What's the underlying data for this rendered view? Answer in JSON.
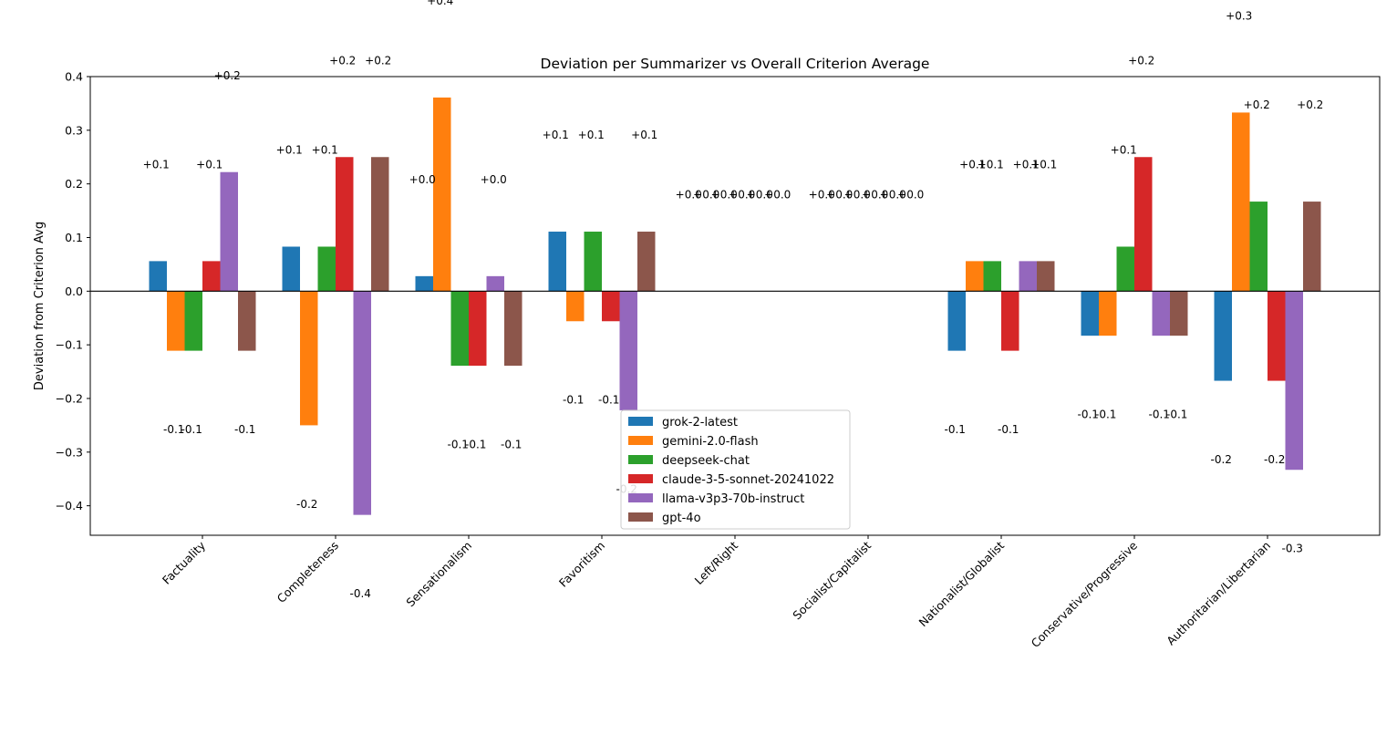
{
  "chart_data": {
    "type": "bar",
    "title": "Deviation per Summarizer vs Overall Criterion Average",
    "xlabel": "",
    "ylabel": "Deviation from Criterion Avg",
    "ylim": [
      -0.455,
      0.4
    ],
    "yticks": [
      0.4,
      0.3,
      0.2,
      0.1,
      0.0,
      -0.1,
      -0.2,
      -0.3,
      -0.4
    ],
    "ytick_labels": [
      "0.4",
      "0.3",
      "0.2",
      "0.1",
      "0.0",
      "−0.1",
      "−0.2",
      "−0.3",
      "−0.4"
    ],
    "grid": false,
    "legend_position": "lower-center",
    "categories": [
      "Factuality",
      "Completeness",
      "Sensationalism",
      "Favoritism",
      "Left/Right",
      "Socialist/Capitalist",
      "Nationalist/Globalist",
      "Conservative/Progressive",
      "Authoritarian/Libertarian"
    ],
    "series": [
      {
        "name": "grok-2-latest",
        "color": "#1f77b4",
        "values": [
          0.056,
          0.083,
          0.028,
          0.111,
          0.0,
          0.0,
          -0.111,
          -0.083,
          -0.167
        ],
        "labels": [
          "+0.1",
          "+0.1",
          "+0.0",
          "+0.1",
          "+0.0",
          "+0.0",
          "-0.1",
          "-0.1",
          "-0.2"
        ]
      },
      {
        "name": "gemini-2.0-flash",
        "color": "#ff7f0e",
        "values": [
          -0.111,
          -0.25,
          0.361,
          -0.056,
          0.0,
          0.0,
          0.056,
          -0.083,
          0.333
        ],
        "labels": [
          "-0.1",
          "-0.2",
          "+0.4",
          "-0.1",
          "+0.0",
          "+0.0",
          "+0.1",
          "-0.1",
          "+0.3"
        ]
      },
      {
        "name": "deepseek-chat",
        "color": "#2ca02c",
        "values": [
          -0.111,
          0.083,
          -0.139,
          0.111,
          0.0,
          0.0,
          0.056,
          0.083,
          0.167
        ],
        "labels": [
          "-0.1",
          "+0.1",
          "-0.1",
          "+0.1",
          "+0.0",
          "+0.0",
          "+0.1",
          "+0.1",
          "+0.2"
        ]
      },
      {
        "name": "claude-3-5-sonnet-20241022",
        "color": "#d62728",
        "values": [
          0.056,
          0.25,
          -0.139,
          -0.056,
          0.0,
          0.0,
          -0.111,
          0.25,
          -0.167
        ],
        "labels": [
          "+0.1",
          "+0.2",
          "-0.1",
          "-0.1",
          "+0.0",
          "+0.0",
          "-0.1",
          "+0.2",
          "-0.2"
        ]
      },
      {
        "name": "llama-v3p3-70b-instruct",
        "color": "#9467bd",
        "values": [
          0.222,
          -0.417,
          0.028,
          -0.222,
          0.0,
          0.0,
          0.056,
          -0.083,
          -0.333
        ],
        "labels": [
          "+0.2",
          "-0.4",
          "+0.0",
          "-0.2",
          "+0.0",
          "+0.0",
          "+0.1",
          "-0.1",
          "-0.3"
        ]
      },
      {
        "name": "gpt-4o",
        "color": "#8c564b",
        "values": [
          -0.111,
          0.25,
          -0.139,
          0.111,
          0.0,
          0.0,
          0.056,
          -0.083,
          0.167
        ],
        "labels": [
          "-0.1",
          "+0.2",
          "-0.1",
          "+0.1",
          "+0.0",
          "+0.0",
          "+0.1",
          "-0.1",
          "+0.2"
        ]
      }
    ]
  }
}
